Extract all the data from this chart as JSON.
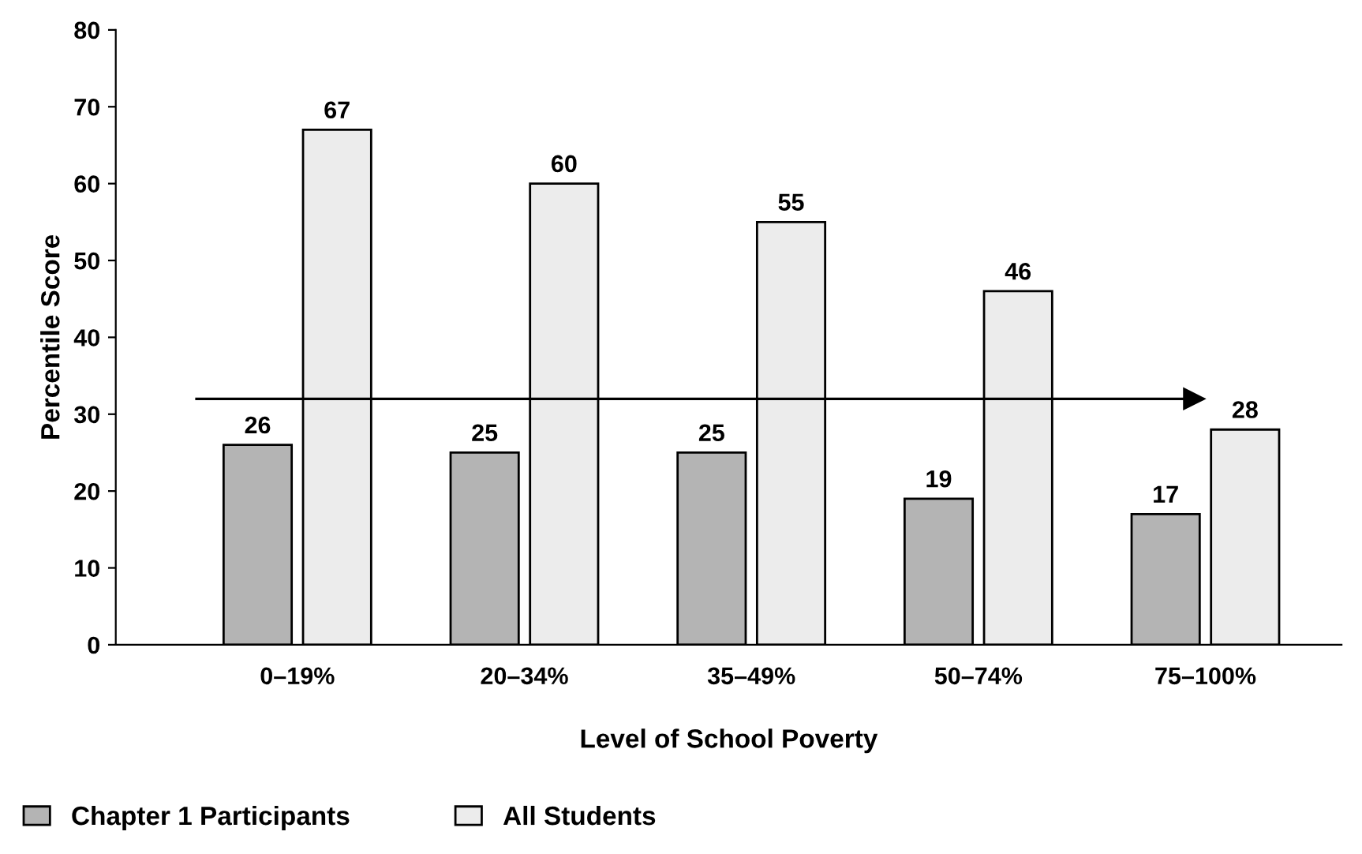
{
  "chart_data": {
    "type": "bar",
    "xlabel": "Level of School Poverty",
    "ylabel": "Percentile Score",
    "categories": [
      "0–19%",
      "20–34%",
      "35–49%",
      "50–74%",
      "75–100%"
    ],
    "series": [
      {
        "name": "Chapter 1 Participants",
        "color": "#b4b4b4",
        "values": [
          26,
          25,
          25,
          19,
          17
        ]
      },
      {
        "name": "All Students",
        "color": "#ececec",
        "values": [
          67,
          60,
          55,
          46,
          28
        ]
      }
    ],
    "ylim": [
      0,
      80
    ],
    "yticks": [
      0,
      10,
      20,
      30,
      40,
      50,
      60,
      70,
      80
    ],
    "ref_lines": [
      {
        "axis": "y",
        "value": 32,
        "label": null,
        "color": "#000000",
        "line_style": "solid"
      }
    ],
    "data_labels": true,
    "grid": false,
    "legend": "bottom left"
  }
}
